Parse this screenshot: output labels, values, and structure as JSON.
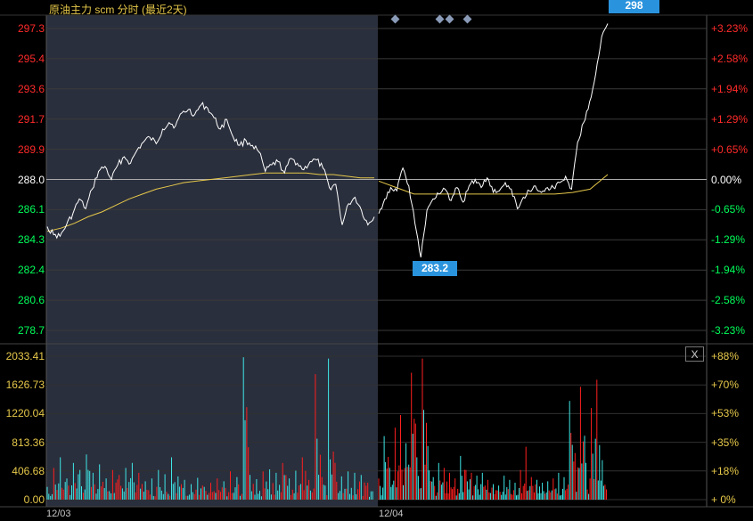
{
  "title": "原油主力 scm 分时 (最近2天)",
  "tags": {
    "high": "298",
    "low": "283.2"
  },
  "close_label": "X",
  "colors": {
    "price": "#ffffff",
    "avg": "#e6c84a",
    "up": "#ff2a2a",
    "down": "#00ff5a",
    "vol_up": "#ff1f1f",
    "vol_down": "#3fe8e8",
    "axis_ref": "#ffffff",
    "shade": "#2a2f3d",
    "marker": "#8a9bb8"
  },
  "price_axis": {
    "left": [
      "297.3",
      "295.4",
      "293.6",
      "291.7",
      "289.9",
      "288.0",
      "286.1",
      "284.3",
      "282.4",
      "280.6",
      "278.7"
    ],
    "right": [
      "+3.23%",
      "+2.58%",
      "+1.94%",
      "+1.29%",
      "+0.65%",
      "0.00%",
      "-0.65%",
      "-1.29%",
      "-1.94%",
      "-2.58%",
      "-3.23%"
    ]
  },
  "volume_axis": {
    "left": [
      "2033.41",
      "1626.73",
      "1220.04",
      "813.36",
      "406.68",
      "0.00"
    ],
    "right": [
      "+88%",
      "+70%",
      "+53%",
      "+35%",
      "+18%",
      "+ 0%"
    ]
  },
  "x_ticks": [
    "12/03",
    "12/04"
  ],
  "chart_data": {
    "type": "line",
    "title": "原油主力 scm 分时 (最近2天)",
    "reference_price": 288.0,
    "ylim": [
      278.7,
      297.3
    ],
    "days": [
      "12/03",
      "12/04"
    ],
    "price_series": [
      {
        "name": "12/03",
        "values": [
          285.1,
          284.6,
          284.5,
          285.2,
          285.9,
          286.8,
          286.2,
          287.4,
          288.5,
          288.8,
          288.0,
          288.9,
          289.4,
          289.0,
          289.8,
          290.3,
          290.6,
          290.2,
          291.1,
          291.5,
          291.3,
          292.1,
          292.3,
          292.0,
          292.6,
          292.4,
          291.8,
          291.1,
          291.7,
          290.6,
          290.1,
          290.4,
          290.1,
          289.7,
          288.5,
          288.9,
          289.1,
          288.4,
          289.3,
          289.0,
          288.6,
          289.1,
          289.2,
          288.7,
          287.5,
          287.7,
          285.2,
          286.5,
          286.9,
          286.1,
          285.2,
          285.7
        ]
      },
      {
        "name": "12/04",
        "values": [
          285.9,
          286.8,
          287.5,
          287.3,
          288.7,
          287.6,
          285.3,
          283.2,
          286.1,
          286.8,
          287.1,
          287.4,
          286.7,
          287.5,
          286.6,
          287.6,
          288.0,
          287.5,
          288.1,
          287.2,
          287.3,
          287.8,
          287.4,
          286.2,
          286.9,
          287.3,
          287.6,
          287.2,
          287.5,
          287.5,
          287.8,
          288.2,
          287.4,
          290.3,
          291.5,
          292.8,
          294.5,
          296.8,
          297.6
        ]
      }
    ],
    "avg_series": [
      {
        "name": "12/03",
        "values": [
          284.8,
          285.0,
          285.3,
          285.7,
          286.0,
          286.4,
          286.8,
          287.1,
          287.4,
          287.6,
          287.8,
          287.9,
          288.0,
          288.1,
          288.2,
          288.3,
          288.4,
          288.4,
          288.4,
          288.4,
          288.3,
          288.3,
          288.2,
          288.1,
          288.1
        ]
      },
      {
        "name": "12/04",
        "values": [
          287.9,
          287.5,
          287.1,
          287.1,
          287.1,
          287.1,
          287.1,
          287.1,
          287.1,
          287.1,
          287.1,
          287.2,
          287.4,
          288.3
        ]
      }
    ],
    "volume": {
      "ylim": [
        0,
        2033.41
      ],
      "day_12_03": [
        180,
        450,
        600,
        300,
        520,
        420,
        640,
        380,
        500,
        300,
        420,
        350,
        450,
        520,
        380,
        260,
        300,
        420,
        360,
        600,
        330,
        280,
        220,
        310,
        180,
        240,
        300,
        260,
        400,
        320,
        2020,
        350,
        290,
        400,
        430,
        380,
        520,
        300,
        410,
        600,
        280,
        1780,
        320,
        2000,
        520,
        330,
        400,
        380,
        350,
        240
      ],
      "day_12_04": [
        300,
        900,
        450,
        1020,
        1200,
        800,
        1800,
        600,
        2000,
        760,
        320,
        520,
        450,
        380,
        300,
        620,
        420,
        380,
        340,
        380,
        280,
        220,
        200,
        340,
        280,
        240,
        420,
        750,
        320,
        280,
        240,
        260,
        300,
        380,
        320,
        1400,
        660,
        1600,
        520,
        1300,
        1700,
        560
      ]
    }
  }
}
